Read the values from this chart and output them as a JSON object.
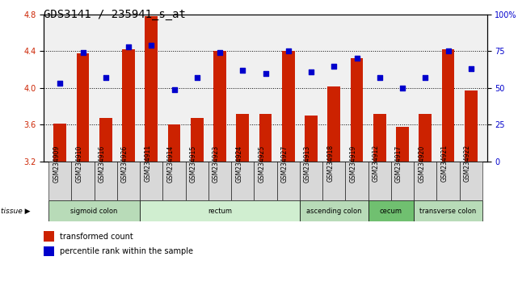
{
  "title": "GDS3141 / 235941_s_at",
  "samples": [
    "GSM234909",
    "GSM234910",
    "GSM234916",
    "GSM234926",
    "GSM234911",
    "GSM234914",
    "GSM234915",
    "GSM234923",
    "GSM234924",
    "GSM234925",
    "GSM234927",
    "GSM234913",
    "GSM234918",
    "GSM234919",
    "GSM234912",
    "GSM234917",
    "GSM234920",
    "GSM234921",
    "GSM234922"
  ],
  "bar_values": [
    3.61,
    4.38,
    3.67,
    4.42,
    4.78,
    3.6,
    3.67,
    4.4,
    3.72,
    3.72,
    4.4,
    3.7,
    4.02,
    4.32,
    3.72,
    3.58,
    3.72,
    4.42,
    3.97
  ],
  "dot_values": [
    53,
    74,
    57,
    78,
    79,
    49,
    57,
    74,
    62,
    60,
    75,
    61,
    65,
    70,
    57,
    50,
    57,
    75,
    63
  ],
  "ylim_left": [
    3.2,
    4.8
  ],
  "ylim_right": [
    0,
    100
  ],
  "yticks_left": [
    3.2,
    3.6,
    4.0,
    4.4,
    4.8
  ],
  "yticks_right": [
    0,
    25,
    50,
    75,
    100
  ],
  "ytick_labels_right": [
    "0",
    "25",
    "50",
    "75",
    "100%"
  ],
  "bar_color": "#cc2200",
  "dot_color": "#0000cc",
  "bg_color": "#f0f0f0",
  "tissue_groups": [
    {
      "label": "sigmoid colon",
      "start": 0,
      "end": 3,
      "color": "#b8dbb8"
    },
    {
      "label": "rectum",
      "start": 4,
      "end": 10,
      "color": "#d0eed0"
    },
    {
      "label": "ascending colon",
      "start": 11,
      "end": 13,
      "color": "#b8dbb8"
    },
    {
      "label": "cecum",
      "start": 14,
      "end": 15,
      "color": "#70c070"
    },
    {
      "label": "transverse colon",
      "start": 16,
      "end": 18,
      "color": "#b8dbb8"
    }
  ],
  "legend_bar_label": "transformed count",
  "legend_dot_label": "percentile rank within the sample",
  "tissue_label": "tissue",
  "title_fontsize": 10,
  "tick_fontsize": 7,
  "sample_fontsize": 5.5
}
